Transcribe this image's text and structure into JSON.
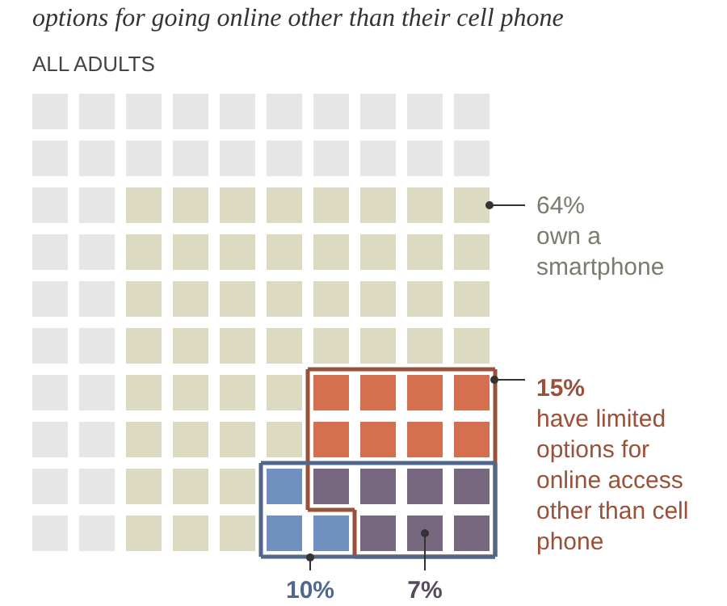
{
  "chart_data": {
    "type": "other",
    "title": "options for going online other than their cell phone",
    "subtitle": "ALL ADULTS",
    "categories": [
      "own a smartphone",
      "have limited options for online access other than cell phone",
      null,
      null
    ],
    "values": [
      64,
      15,
      10,
      7
    ],
    "value_labels": [
      "64%",
      "15%",
      "10%",
      "7%"
    ],
    "colors": [
      "#dcdac0",
      "#d4704f",
      "#7090c0",
      "#77677f"
    ]
  }
}
